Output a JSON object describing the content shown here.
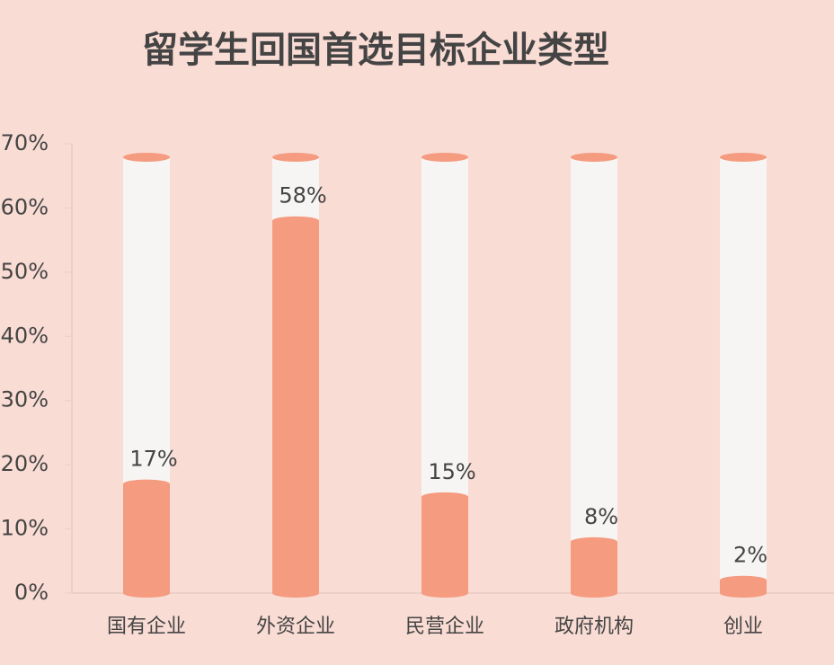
{
  "chart_data": {
    "type": "bar",
    "title": "留学生回国首选目标企业类型",
    "categories": [
      "国有企业",
      "外资企业",
      "民营企业",
      "政府机构",
      "创业"
    ],
    "values": [
      17,
      58,
      15,
      8,
      2
    ],
    "value_labels": [
      "17%",
      "58%",
      "15%",
      "8%",
      "2%"
    ],
    "color": "#f59b80",
    "ylim": [
      0,
      70
    ],
    "yticks": [
      {
        "value": 0,
        "label": "0%"
      },
      {
        "value": 10,
        "label": "10%"
      },
      {
        "value": 20,
        "label": "20%"
      },
      {
        "value": 30,
        "label": "30%"
      },
      {
        "value": 40,
        "label": "40%"
      },
      {
        "value": 50,
        "label": "50%"
      },
      {
        "value": 60,
        "label": "60%"
      },
      {
        "value": 70,
        "label": "70%"
      }
    ]
  }
}
